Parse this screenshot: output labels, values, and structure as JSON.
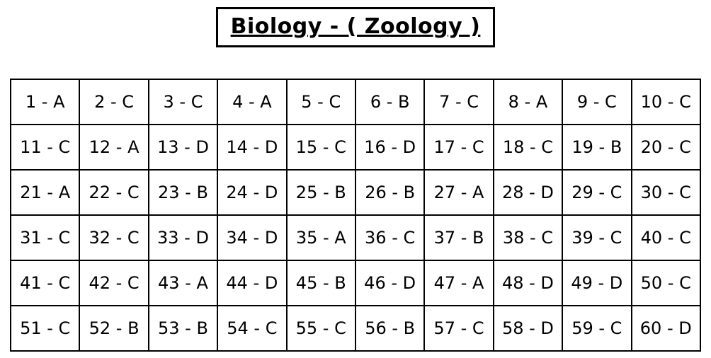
{
  "title": {
    "text": "Biology - ( Zoology )"
  },
  "answer_key": {
    "subject": "Biology",
    "section": "Zoology",
    "separator": " - ",
    "columns": 10,
    "total_questions": 60,
    "answers": [
      {
        "q": 1,
        "a": "A"
      },
      {
        "q": 2,
        "a": "C"
      },
      {
        "q": 3,
        "a": "C"
      },
      {
        "q": 4,
        "a": "A"
      },
      {
        "q": 5,
        "a": "C"
      },
      {
        "q": 6,
        "a": "B"
      },
      {
        "q": 7,
        "a": "C"
      },
      {
        "q": 8,
        "a": "A"
      },
      {
        "q": 9,
        "a": "C"
      },
      {
        "q": 10,
        "a": "C"
      },
      {
        "q": 11,
        "a": "C"
      },
      {
        "q": 12,
        "a": "A"
      },
      {
        "q": 13,
        "a": "D"
      },
      {
        "q": 14,
        "a": "D"
      },
      {
        "q": 15,
        "a": "C"
      },
      {
        "q": 16,
        "a": "D"
      },
      {
        "q": 17,
        "a": "C"
      },
      {
        "q": 18,
        "a": "C"
      },
      {
        "q": 19,
        "a": "B"
      },
      {
        "q": 20,
        "a": "C"
      },
      {
        "q": 21,
        "a": "A"
      },
      {
        "q": 22,
        "a": "C"
      },
      {
        "q": 23,
        "a": "B"
      },
      {
        "q": 24,
        "a": "D"
      },
      {
        "q": 25,
        "a": "B"
      },
      {
        "q": 26,
        "a": "B"
      },
      {
        "q": 27,
        "a": "A"
      },
      {
        "q": 28,
        "a": "D"
      },
      {
        "q": 29,
        "a": "C"
      },
      {
        "q": 30,
        "a": "C"
      },
      {
        "q": 31,
        "a": "C"
      },
      {
        "q": 32,
        "a": "C"
      },
      {
        "q": 33,
        "a": "D"
      },
      {
        "q": 34,
        "a": "D"
      },
      {
        "q": 35,
        "a": "A"
      },
      {
        "q": 36,
        "a": "C"
      },
      {
        "q": 37,
        "a": "B"
      },
      {
        "q": 38,
        "a": "C"
      },
      {
        "q": 39,
        "a": "C"
      },
      {
        "q": 40,
        "a": "C"
      },
      {
        "q": 41,
        "a": "C"
      },
      {
        "q": 42,
        "a": "C"
      },
      {
        "q": 43,
        "a": "A"
      },
      {
        "q": 44,
        "a": "D"
      },
      {
        "q": 45,
        "a": "B"
      },
      {
        "q": 46,
        "a": "D"
      },
      {
        "q": 47,
        "a": "A"
      },
      {
        "q": 48,
        "a": "D"
      },
      {
        "q": 49,
        "a": "D"
      },
      {
        "q": 50,
        "a": "C"
      },
      {
        "q": 51,
        "a": "C"
      },
      {
        "q": 52,
        "a": "B"
      },
      {
        "q": 53,
        "a": "B"
      },
      {
        "q": 54,
        "a": "C"
      },
      {
        "q": 55,
        "a": "C"
      },
      {
        "q": 56,
        "a": "B"
      },
      {
        "q": 57,
        "a": "C"
      },
      {
        "q": 58,
        "a": "D"
      },
      {
        "q": 59,
        "a": "C"
      },
      {
        "q": 60,
        "a": "D"
      }
    ]
  },
  "colors": {
    "background": "#ffffff",
    "text": "#000000",
    "border": "#000000"
  }
}
